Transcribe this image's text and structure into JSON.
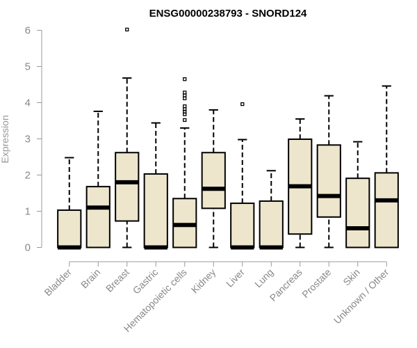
{
  "chart_data": {
    "type": "boxplot",
    "title": "ENSG00000238793 - SNORD124",
    "ylabel": "Expression",
    "xlabel": "",
    "ylim": [
      0,
      6
    ],
    "yticks": [
      "0",
      "1",
      "2",
      "3",
      "4",
      "5",
      "6"
    ],
    "grid": false,
    "box_fill": "#EDE6CD",
    "categories": [
      "Bladder",
      "Brain",
      "Breast",
      "Gastric",
      "Hematopoietic cells",
      "Kidney",
      "Liver",
      "Lung",
      "Pancreas",
      "Prostate",
      "Skin",
      "Unknown / Other"
    ],
    "boxes": [
      {
        "category": "Bladder",
        "whisker_low": 0,
        "q1": 0,
        "median": 0,
        "q3": 1.03,
        "whisker_high": 2.48,
        "outliers": []
      },
      {
        "category": "Brain",
        "whisker_low": 0,
        "q1": 0,
        "median": 1.1,
        "q3": 1.68,
        "whisker_high": 3.76,
        "outliers": []
      },
      {
        "category": "Breast",
        "whisker_low": 0,
        "q1": 0.73,
        "median": 1.8,
        "q3": 2.62,
        "whisker_high": 4.68,
        "outliers": [
          6.02
        ]
      },
      {
        "category": "Gastric",
        "whisker_low": 0,
        "q1": 0,
        "median": 0,
        "q3": 2.03,
        "whisker_high": 3.44,
        "outliers": []
      },
      {
        "category": "Hematopoietic cells",
        "whisker_low": 0,
        "q1": 0,
        "median": 0.62,
        "q3": 1.35,
        "whisker_high": 3.3,
        "outliers": [
          3.52,
          3.68,
          3.75,
          3.82,
          3.9,
          4.12,
          4.2,
          4.28,
          4.65
        ]
      },
      {
        "category": "Kidney",
        "whisker_low": 0,
        "q1": 1.08,
        "median": 1.62,
        "q3": 2.62,
        "whisker_high": 3.8,
        "outliers": []
      },
      {
        "category": "Liver",
        "whisker_low": 0,
        "q1": 0,
        "median": 0,
        "q3": 1.22,
        "whisker_high": 2.98,
        "outliers": [
          3.96
        ]
      },
      {
        "category": "Lung",
        "whisker_low": 0,
        "q1": 0,
        "median": 0,
        "q3": 1.28,
        "whisker_high": 2.12,
        "outliers": []
      },
      {
        "category": "Pancreas",
        "whisker_low": 0,
        "q1": 0.37,
        "median": 1.69,
        "q3": 2.99,
        "whisker_high": 3.55,
        "outliers": []
      },
      {
        "category": "Prostate",
        "whisker_low": 0,
        "q1": 0.84,
        "median": 1.42,
        "q3": 2.83,
        "whisker_high": 4.19,
        "outliers": []
      },
      {
        "category": "Skin",
        "whisker_low": 0,
        "q1": 0,
        "median": 0.53,
        "q3": 1.91,
        "whisker_high": 2.92,
        "outliers": []
      },
      {
        "category": "Unknown / Other",
        "whisker_low": 0,
        "q1": 0,
        "median": 1.3,
        "q3": 2.06,
        "whisker_high": 4.46,
        "outliers": []
      }
    ]
  }
}
